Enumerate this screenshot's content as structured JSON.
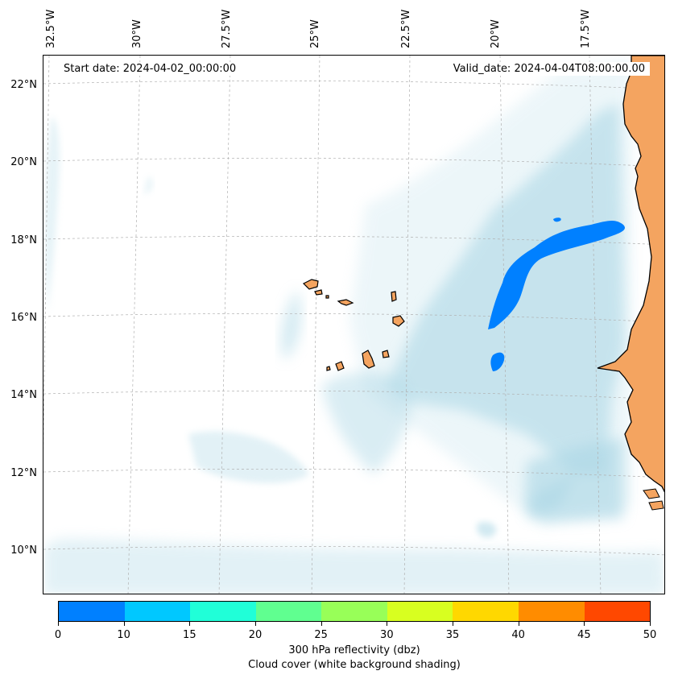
{
  "map": {
    "start_date": "Start date: 2024-04-02_00:00:00",
    "valid_date": "Valid_date: 2024-04-04T08:00:00.00",
    "lon_labels": [
      "32.5°W",
      "30°W",
      "27.5°W",
      "25°W",
      "22.5°W",
      "20°W",
      "17.5°W"
    ],
    "lat_labels": [
      "22°N",
      "20°N",
      "18°N",
      "16°N",
      "14°N",
      "12°N",
      "10°N"
    ],
    "colors": {
      "land": "#f4a460",
      "cloud": "#add8e6",
      "reflectivity": "#0080ff",
      "gridline": "#b0b0b0"
    }
  },
  "colorbar": {
    "ticks": [
      "0",
      "10",
      "15",
      "20",
      "25",
      "30",
      "35",
      "40",
      "45",
      "50"
    ],
    "colors": [
      "#0080ff",
      "#00c8ff",
      "#20ffd8",
      "#60ff90",
      "#98ff58",
      "#d8ff20",
      "#ffd800",
      "#ff8c00",
      "#ff4800"
    ],
    "label_line1": "300 hPa reflectivity (dbz)",
    "label_line2": "Cloud cover (white background shading)"
  }
}
